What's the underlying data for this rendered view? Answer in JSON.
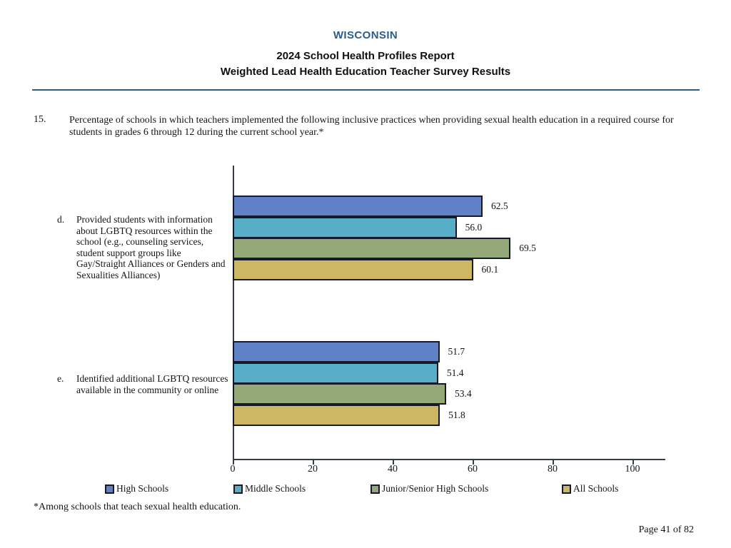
{
  "header": {
    "state": "WISCONSIN",
    "title_line1": "2024 School Health Profiles Report",
    "title_line2": "Weighted Lead Health Education Teacher Survey Results"
  },
  "question": {
    "number": "15.",
    "text": "Percentage of schools in which teachers implemented the following inclusive practices when providing sexual health education in a required course for students in grades 6 through 12 during the current school year.*"
  },
  "chart_data": {
    "type": "bar",
    "orientation": "horizontal",
    "categories": [
      {
        "letter": "d.",
        "label": "Provided students with information about LGBTQ resources within the school (e.g., counseling services, student support groups like Gay/Straight Alliances or Genders and Sexualities Alliances)"
      },
      {
        "letter": "e.",
        "label": "Identified additional LGBTQ resources available in the community or online"
      }
    ],
    "series": [
      {
        "name": "High Schools",
        "color": "#6080C8",
        "values": [
          62.5,
          51.7
        ]
      },
      {
        "name": "Middle Schools",
        "color": "#58AEC6",
        "values": [
          56.0,
          51.4
        ]
      },
      {
        "name": "Junior/Senior High Schools",
        "color": "#95A878",
        "values": [
          69.5,
          53.4
        ]
      },
      {
        "name": "All Schools",
        "color": "#CDB664",
        "values": [
          60.1,
          51.8
        ]
      }
    ],
    "xlim": [
      0,
      100
    ],
    "xticks": [
      0,
      20,
      40,
      60,
      80,
      100
    ],
    "xlabel": "",
    "ylabel": "",
    "grid": false,
    "legend_position": "bottom",
    "bar_outline_color": "#141a28",
    "value_label_decimals": 1
  },
  "footnote": "*Among schools that teach sexual health education.",
  "page_footer": "Page 41 of 82"
}
